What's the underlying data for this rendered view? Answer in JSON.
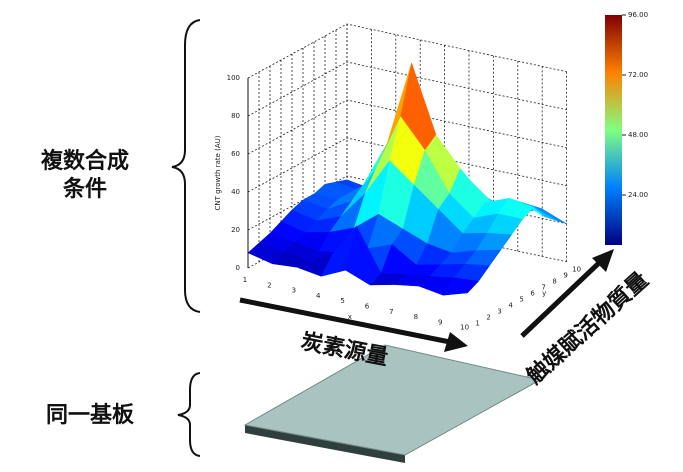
{
  "labels": {
    "conditions": [
      "複数合成",
      "条件"
    ],
    "substrate": "同一基板",
    "carbon": "炭素源量",
    "catalyst": "触媒賦活物質量"
  },
  "chart_data": {
    "type": "surface3d",
    "zlabel": "CNT growth rate (AU)",
    "xlabel": "x",
    "ylabel": "y",
    "x": [
      1,
      2,
      3,
      4,
      5,
      6,
      7,
      8,
      9,
      10
    ],
    "y": [
      1,
      2,
      3,
      4,
      5,
      6,
      7,
      8,
      9,
      10
    ],
    "z": [
      [
        8,
        5,
        6,
        4,
        10,
        5,
        8,
        10,
        8,
        12
      ],
      [
        10,
        8,
        6,
        12,
        30,
        8,
        10,
        12,
        14,
        15
      ],
      [
        12,
        10,
        8,
        10,
        15,
        20,
        12,
        15,
        18,
        20
      ],
      [
        15,
        12,
        15,
        20,
        30,
        25,
        20,
        18,
        22,
        25
      ],
      [
        18,
        15,
        20,
        35,
        55,
        45,
        35,
        25,
        28,
        30
      ],
      [
        20,
        18,
        25,
        45,
        75,
        60,
        40,
        30,
        35,
        35
      ],
      [
        20,
        20,
        30,
        55,
        100,
        65,
        50,
        35,
        40,
        38
      ],
      [
        22,
        20,
        28,
        45,
        70,
        50,
        40,
        30,
        35,
        30
      ],
      [
        20,
        18,
        25,
        30,
        40,
        35,
        30,
        25,
        30,
        25
      ],
      [
        18,
        16,
        20,
        22,
        25,
        20,
        22,
        20,
        25,
        20
      ]
    ],
    "xlim": [
      1,
      10
    ],
    "ylim": [
      1,
      10
    ],
    "zlim": [
      0,
      100
    ],
    "xticks": [
      1,
      2,
      3,
      4,
      5,
      6,
      7,
      8,
      9,
      10
    ],
    "yticks": [
      1,
      2,
      3,
      4,
      5,
      6,
      7,
      8,
      9,
      10
    ],
    "zticks": [
      0,
      20,
      40,
      60,
      80,
      100
    ],
    "colorbar": {
      "clim": [
        0,
        96
      ],
      "ticks": [
        {
          "value": 96,
          "label": "96.00"
        },
        {
          "value": 72,
          "label": "72.00"
        },
        {
          "value": 48,
          "label": "48.00"
        },
        {
          "value": 24,
          "label": "24.00"
        }
      ]
    }
  }
}
